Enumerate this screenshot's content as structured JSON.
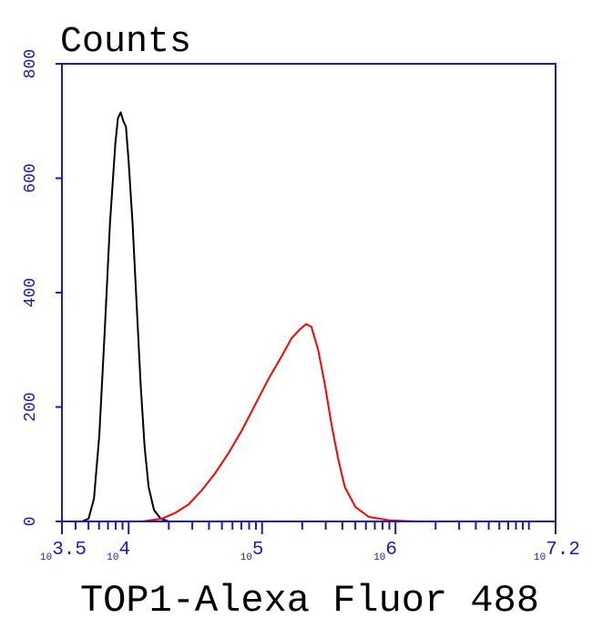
{
  "chart_data": {
    "type": "line",
    "title": "Counts",
    "x_label": "TOP1-Alexa Fluor 488",
    "log_x": true,
    "xlim": [
      3162.28,
      15848932
    ],
    "ylim": [
      0,
      800
    ],
    "xticks": [
      {
        "value": 3162.28,
        "label": "10",
        "superscript": "3.5"
      },
      {
        "value": 10000,
        "label": "10",
        "superscript": "4"
      },
      {
        "value": 100000,
        "label": "10",
        "superscript": "5"
      },
      {
        "value": 1000000,
        "label": "10",
        "superscript": "6"
      },
      {
        "value": 15848932,
        "label": "10",
        "superscript": "7.2"
      }
    ],
    "minor_xticks": [
      4000,
      5000,
      6000,
      7000,
      8000,
      9000,
      20000,
      30000,
      40000,
      50000,
      60000,
      70000,
      80000,
      90000,
      200000,
      300000,
      400000,
      500000,
      600000,
      700000,
      800000,
      900000,
      2000000,
      3000000,
      4000000,
      5000000,
      6000000,
      7000000,
      8000000,
      9000000,
      10000000
    ],
    "yticks": [
      0,
      200,
      400,
      600,
      800
    ],
    "axis_color": "#1c1cb4",
    "series": [
      {
        "color": "#000000",
        "x": [
          4467,
          5012,
          5495,
          6026,
          6607,
          7244,
          7943,
          8318,
          8710,
          9120,
          9550,
          10000,
          10715,
          11482,
          12303,
          13183,
          14125,
          15488,
          17378,
          19953,
          39811
        ],
        "values": [
          0,
          5,
          40,
          150,
          330,
          520,
          660,
          705,
          715,
          700,
          690,
          630,
          520,
          380,
          240,
          130,
          60,
          20,
          5,
          0,
          0
        ]
      },
      {
        "color": "#ff0000",
        "x": [
          12589,
          17783,
          22387,
          28184,
          35481,
          44668,
          56234,
          70795,
          89125,
          112202,
          141254,
          165959,
          190546,
          213796,
          234423,
          263027,
          295121,
          331131,
          371535,
          416869,
          501187,
          630957,
          891251,
          1412538
        ],
        "values": [
          0,
          5,
          15,
          30,
          55,
          85,
          120,
          160,
          205,
          250,
          290,
          320,
          335,
          345,
          340,
          300,
          240,
          170,
          110,
          60,
          25,
          8,
          2,
          0
        ]
      }
    ]
  }
}
